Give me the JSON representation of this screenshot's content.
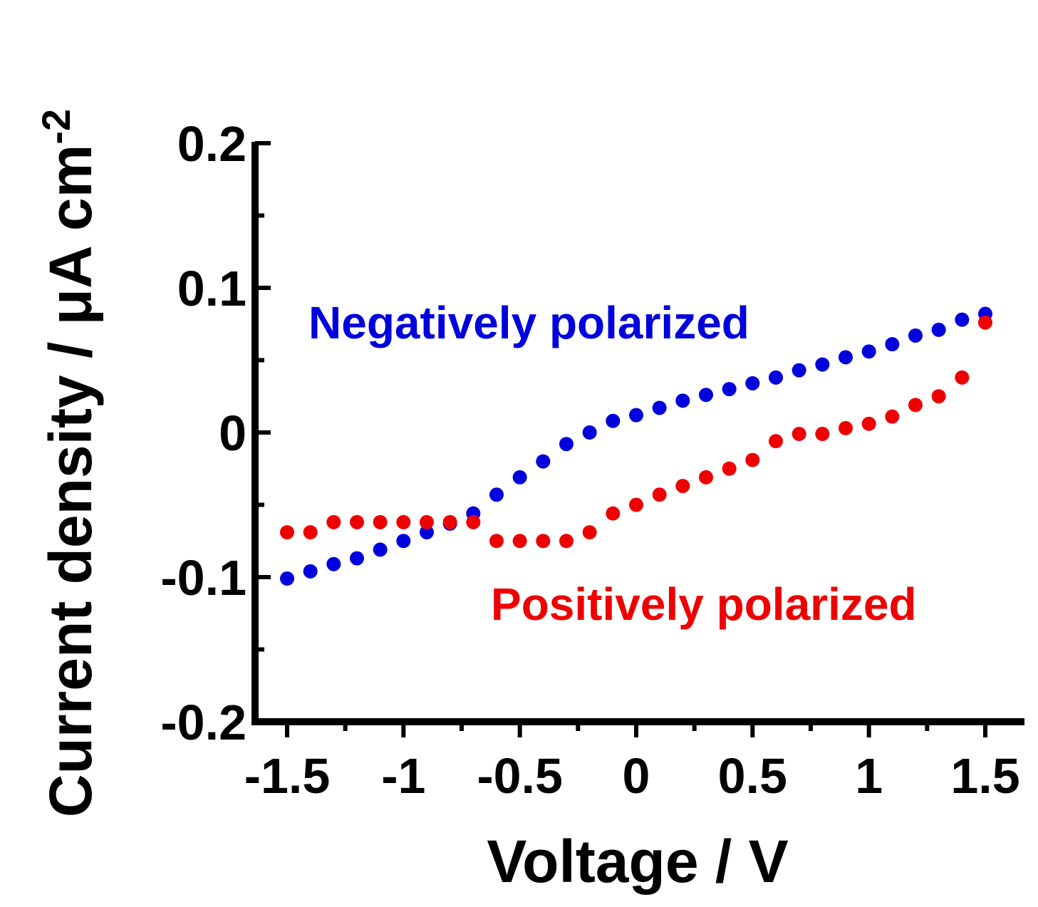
{
  "chart_data": {
    "type": "scatter",
    "xlabel": "Voltage / V",
    "ylabel": "Current density / μA cm",
    "ylabel_superscript": "-2",
    "xlim": [
      -1.5,
      1.5
    ],
    "ylim": [
      -0.2,
      0.2
    ],
    "xticks": [
      -1.5,
      -1,
      -0.5,
      0,
      0.5,
      1,
      1.5
    ],
    "xtick_labels": [
      "-1.5",
      "-1",
      "-0.5",
      "0",
      "0.5",
      "1",
      "1.5"
    ],
    "yticks": [
      -0.2,
      -0.1,
      0,
      0.1,
      0.2
    ],
    "ytick_labels": [
      "-0.2",
      "-0.1",
      "0",
      "0.1",
      "0.2"
    ],
    "grid": false,
    "series": [
      {
        "name": "Negatively polarized",
        "color": "#0000dd",
        "x": [
          -1.5,
          -1.4,
          -1.3,
          -1.2,
          -1.1,
          -1.0,
          -0.9,
          -0.8,
          -0.7,
          -0.6,
          -0.5,
          -0.4,
          -0.3,
          -0.2,
          -0.1,
          0.0,
          0.1,
          0.2,
          0.3,
          0.4,
          0.5,
          0.6,
          0.7,
          0.8,
          0.9,
          1.0,
          1.1,
          1.2,
          1.3,
          1.4,
          1.5
        ],
        "y": [
          -0.101,
          -0.096,
          -0.091,
          -0.087,
          -0.081,
          -0.075,
          -0.069,
          -0.063,
          -0.056,
          -0.043,
          -0.031,
          -0.02,
          -0.008,
          0.0,
          0.008,
          0.012,
          0.017,
          0.022,
          0.026,
          0.03,
          0.034,
          0.038,
          0.043,
          0.047,
          0.052,
          0.056,
          0.061,
          0.067,
          0.071,
          0.078,
          0.082
        ]
      },
      {
        "name": "Positively polarized",
        "color": "#ee0000",
        "x": [
          -1.5,
          -1.4,
          -1.3,
          -1.2,
          -1.1,
          -1.0,
          -0.9,
          -0.8,
          -0.7,
          -0.6,
          -0.5,
          -0.4,
          -0.3,
          -0.2,
          -0.1,
          0.0,
          0.1,
          0.2,
          0.3,
          0.4,
          0.5,
          0.6,
          0.7,
          0.8,
          0.9,
          1.0,
          1.1,
          1.2,
          1.3,
          1.4,
          1.5
        ],
        "y": [
          -0.069,
          -0.069,
          -0.062,
          -0.062,
          -0.062,
          -0.062,
          -0.062,
          -0.062,
          -0.062,
          -0.075,
          -0.075,
          -0.075,
          -0.075,
          -0.069,
          -0.056,
          -0.05,
          -0.043,
          -0.037,
          -0.031,
          -0.025,
          -0.019,
          -0.006,
          -0.001,
          -0.001,
          0.003,
          0.006,
          0.011,
          0.019,
          0.025,
          0.038,
          0.076
        ]
      }
    ]
  }
}
